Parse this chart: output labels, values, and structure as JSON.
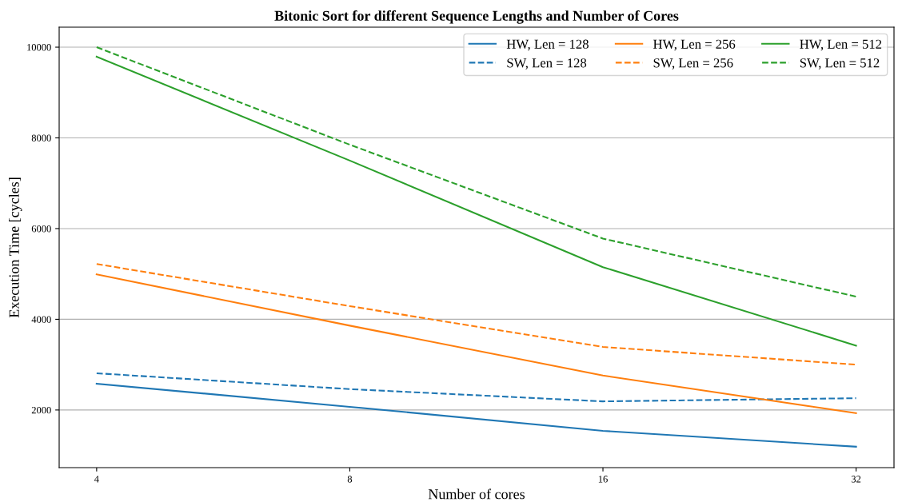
{
  "chart_data": {
    "type": "line",
    "title": "Bitonic Sort for different Sequence Lengths and Number of Cores",
    "xlabel": "Number of cores",
    "ylabel": "Execution Time [cycles]",
    "x": [
      4,
      8,
      16,
      32
    ],
    "log": "x",
    "xlim": [
      3.61,
      35.5
    ],
    "xticks": [
      4,
      8,
      16,
      32
    ],
    "series": [
      {
        "name": "HW, Len = 128",
        "color": "#1f77b4",
        "line_style": "solid",
        "values": [
          2580,
          2070,
          1540,
          1190
        ]
      },
      {
        "name": "SW, Len = 128",
        "color": "#1f77b4",
        "line_style": "dashed",
        "values": [
          2810,
          2460,
          2190,
          2260
        ]
      },
      {
        "name": "HW, Len = 256",
        "color": "#ff7f0e",
        "line_style": "solid",
        "values": [
          4990,
          3860,
          2760,
          1930
        ]
      },
      {
        "name": "SW, Len = 256",
        "color": "#ff7f0e",
        "line_style": "dashed",
        "values": [
          5220,
          4290,
          3390,
          3000
        ]
      },
      {
        "name": "HW, Len = 512",
        "color": "#2ca02c",
        "line_style": "solid",
        "values": [
          9790,
          7500,
          5150,
          3420
        ]
      },
      {
        "name": "SW, Len = 512",
        "color": "#2ca02c",
        "line_style": "dashed",
        "values": [
          10000,
          7850,
          5780,
          4500
        ]
      }
    ],
    "ylim": [
      729,
      10441
    ],
    "yticks": [
      2000,
      4000,
      6000,
      8000,
      10000
    ],
    "grid": "y",
    "legend": "top right",
    "marker": "none"
  }
}
